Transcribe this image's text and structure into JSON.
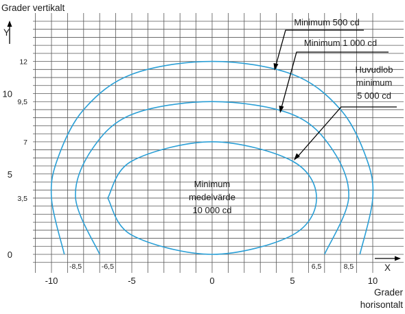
{
  "chart_data": {
    "type": "line",
    "title": "",
    "ylabel": "Grader vertikalt",
    "xlabel": "Grader horisontalt",
    "y_axis_letter": "Y",
    "x_axis_letter": "X",
    "xlim": [
      -10,
      10
    ],
    "ylim": [
      0,
      12
    ],
    "grid": true,
    "x_major_ticks": [
      "-10",
      "-5",
      "0",
      "5",
      "10"
    ],
    "x_minor_ticks": [
      "-8,5",
      "-6,5",
      "6,5",
      "8,5"
    ],
    "y_major_ticks": [
      "0",
      "5",
      "10"
    ],
    "y_minor_ticks": [
      "3,5",
      "7",
      "9,5",
      "12"
    ],
    "curve_color": "#2a9fd6",
    "series": [
      {
        "name": "Minimum 500 cd",
        "x": [
          -9.2,
          -10,
          -9.6,
          -8,
          -5,
          0,
          5,
          8,
          9.6,
          10,
          9.2
        ],
        "y": [
          0,
          3.5,
          6,
          9,
          11.2,
          12,
          11.2,
          9,
          6,
          3.5,
          0
        ]
      },
      {
        "name": "Minimum 1 000 cd",
        "x": [
          -7,
          -8.5,
          -7.5,
          -5,
          0,
          5,
          7.5,
          8.5,
          7
        ],
        "y": [
          0,
          3.5,
          6.5,
          8.7,
          9.5,
          8.7,
          6.5,
          3.5,
          0
        ]
      },
      {
        "name": "Huvudlob minimum 5 000 cd",
        "x": [
          -6.5,
          -5,
          0,
          5,
          6.5,
          5,
          0,
          -5,
          -6.5
        ],
        "y": [
          3.5,
          5.8,
          7,
          5.8,
          3.5,
          1.2,
          0,
          1.2,
          3.5
        ]
      }
    ],
    "annotations": {
      "min500": "Minimum 500 cd",
      "min1000": "Minimum 1 000 cd",
      "huvudlob_line1": "Huvudlob",
      "huvudlob_line2": "minimum",
      "huvudlob_line3": "5 000 cd",
      "center_line1": "Minimum",
      "center_line2": "medelvärde",
      "center_line3": "10 000 cd"
    },
    "xlabel_line1": "Grader",
    "xlabel_line2": "horisontalt"
  }
}
